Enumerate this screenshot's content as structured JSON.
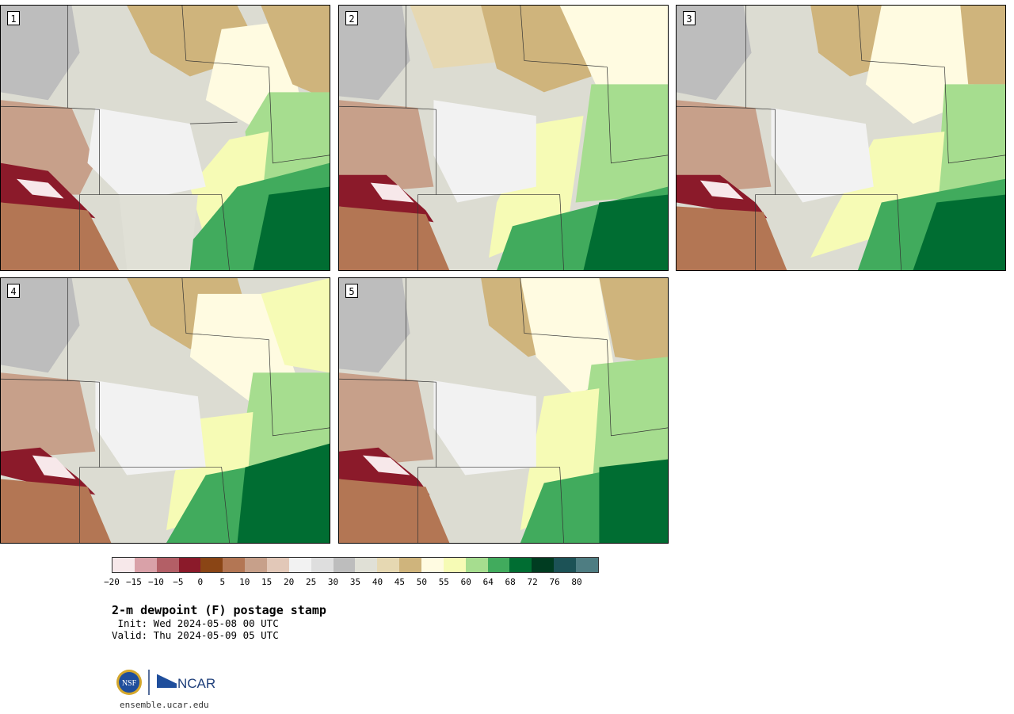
{
  "panels": [
    "1",
    "2",
    "3",
    "4",
    "5"
  ],
  "colorbar": {
    "colors": [
      "#f7e8ea",
      "#d9a1a8",
      "#b35f66",
      "#8b1a2a",
      "#8a4515",
      "#b37654",
      "#c7a08a",
      "#e2c8b8",
      "#f2f2f2",
      "#dedede",
      "#bdbdbd",
      "#e0e0d6",
      "#e6d8b2",
      "#cfb47c",
      "#fffbe1",
      "#f6fbb5",
      "#a6dd8f",
      "#41ab5d",
      "#006d32",
      "#003c21",
      "#1c5256",
      "#4e7d82"
    ],
    "tick_labels": [
      "−20",
      "−15",
      "−10",
      "−5",
      "0",
      "5",
      "10",
      "15",
      "20",
      "25",
      "30",
      "35",
      "40",
      "45",
      "50",
      "55",
      "60",
      "64",
      "68",
      "72",
      "76",
      "80"
    ]
  },
  "title": "2-m dewpoint (F) postage stamp",
  "init": " Init: Wed 2024-05-08 00 UTC",
  "valid": "Valid: Thu 2024-05-09 05 UTC",
  "logos": {
    "nsf": "NSF",
    "ncar": "NCAR"
  },
  "url": "ensemble.ucar.edu"
}
